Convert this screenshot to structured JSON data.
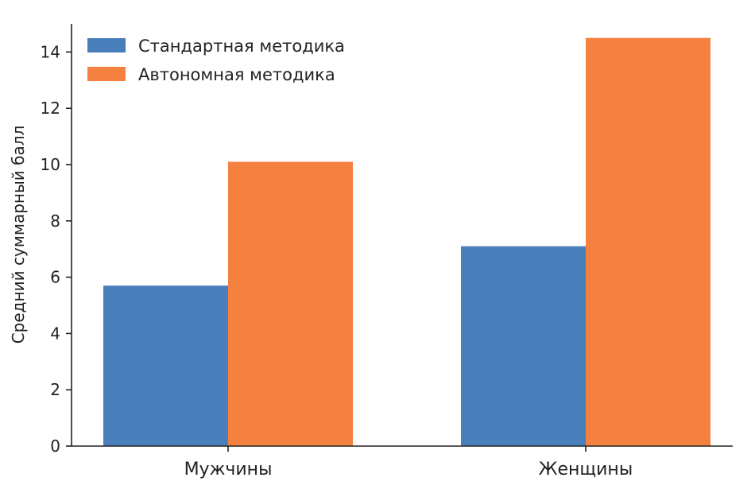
{
  "chart_data": {
    "type": "bar",
    "title": "",
    "xlabel": "",
    "ylabel": "Средний суммарный балл",
    "categories": [
      "Мужчины",
      "Женщины"
    ],
    "series": [
      {
        "name": "Стандартная методика",
        "values": [
          5.7,
          7.1
        ],
        "color": "#4a7ebb"
      },
      {
        "name": "Автономная методика",
        "values": [
          10.1,
          14.5
        ],
        "color": "#f58140"
      }
    ],
    "ylim": [
      0,
      15
    ],
    "yticks": [
      0,
      2,
      4,
      6,
      8,
      10,
      12,
      14
    ],
    "grid": false,
    "legend_position": "top-left"
  }
}
